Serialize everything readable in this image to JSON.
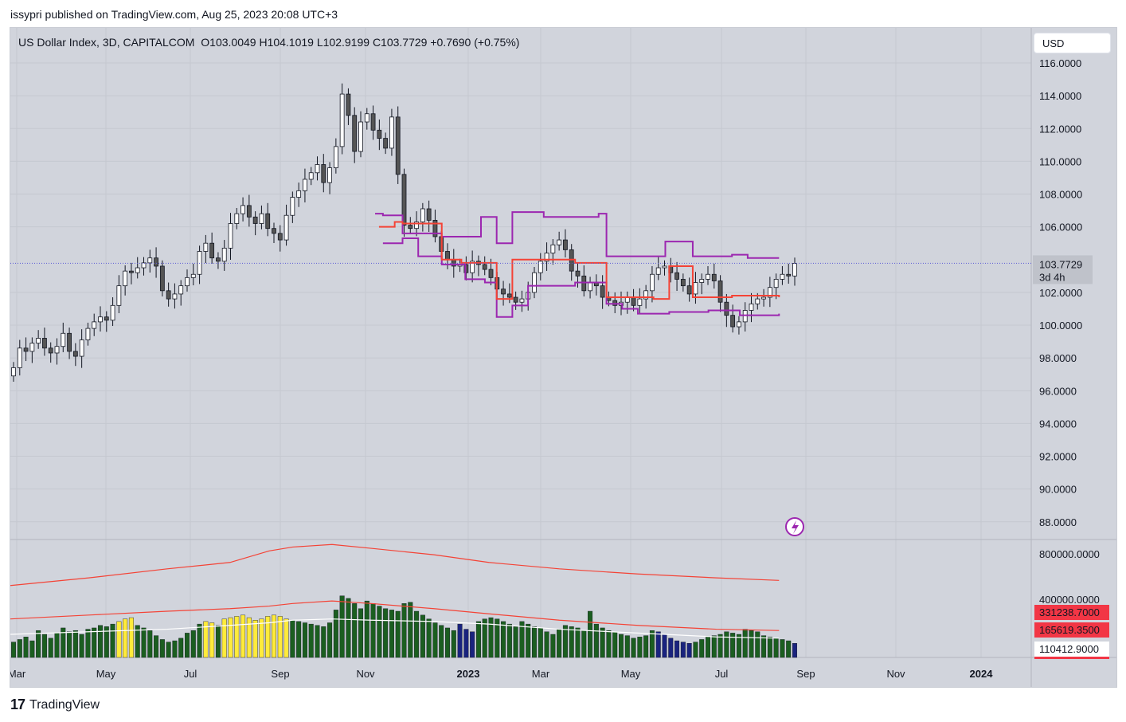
{
  "header": {
    "published_by": "issypri published on TradingView.com, Aug 25, 2023 20:08 UTC+3"
  },
  "legend": {
    "symbol": "US Dollar Index, 3D, CAPITALCOM",
    "open": "O103.0049",
    "high": "H104.1019",
    "low": "L102.9199",
    "close": "C103.7729",
    "change": "+0.7690 (+0.75%)"
  },
  "currency_button": "USD",
  "footer": {
    "brand": "TradingView",
    "logo_text": "17"
  },
  "colors": {
    "background": "#d1d4dc",
    "candle_up": "#ffffff",
    "candle_down": "#555555",
    "channel": "#9c27b0",
    "midline": "#f44336",
    "vol_green": "#1b5e20",
    "vol_yellow": "#ffeb3b",
    "vol_blue": "#1a237e",
    "vol_ma_red": "#f44336",
    "vol_ma_white": "#ffffff",
    "last_price": "#5b5bd6",
    "badge_red": "#f23645"
  },
  "price_axis": {
    "ticks": [
      "116.0000",
      "114.0000",
      "112.0000",
      "110.0000",
      "108.0000",
      "106.0000",
      "102.0000",
      "100.0000",
      "98.0000",
      "96.0000",
      "94.0000",
      "92.0000",
      "90.0000",
      "88.0000"
    ],
    "last_price": "103.7729",
    "countdown": "3d 4h"
  },
  "volume_axis": {
    "ticks": [
      "800000.0000",
      "400000.0000"
    ],
    "badges": [
      "331238.7000",
      "165619.3500",
      "110412.9000"
    ]
  },
  "time_axis": {
    "labels": [
      "Mar",
      "May",
      "Jul",
      "Sep",
      "Nov",
      "2023",
      "Mar",
      "May",
      "Jul",
      "Sep",
      "Nov",
      "2024"
    ]
  },
  "chart_data": {
    "type": "candlestick",
    "title": "US Dollar Index, 3D, CAPITALCOM",
    "ylim": [
      86.0,
      117.0
    ],
    "ohlc_closes": [
      97.4,
      98.6,
      98.4,
      98.9,
      99.2,
      98.6,
      98.3,
      98.7,
      99.5,
      98.4,
      98.1,
      99.1,
      99.8,
      100.2,
      100.5,
      100.3,
      101.2,
      102.4,
      103.3,
      103.2,
      103.5,
      103.8,
      104.1,
      103.6,
      102.1,
      101.6,
      101.9,
      102.4,
      102.9,
      103.1,
      104.5,
      105.0,
      104.1,
      103.9,
      104.7,
      106.2,
      106.8,
      107.3,
      106.6,
      106.2,
      106.8,
      105.9,
      105.6,
      105.2,
      106.7,
      107.8,
      108.2,
      108.9,
      109.3,
      109.8,
      108.7,
      109.6,
      110.9,
      114.1,
      112.8,
      110.6,
      112.4,
      112.9,
      111.9,
      111.4,
      110.8,
      112.7,
      109.2,
      106.1,
      105.9,
      106.3,
      107.1,
      106.4,
      105.4,
      104.5,
      104.0,
      103.6,
      103.7,
      103.2,
      103.9,
      103.7,
      103.4,
      102.9,
      102.2,
      101.9,
      101.7,
      101.4,
      101.6,
      102.0,
      103.2,
      103.9,
      104.4,
      104.9,
      105.2,
      104.6,
      103.3,
      103.0,
      102.1,
      102.6,
      102.4,
      101.7,
      101.5,
      101.2,
      101.4,
      101.7,
      101.2,
      101.6,
      102.1,
      103.1,
      103.5,
      103.6,
      103.2,
      102.8,
      102.4,
      101.9,
      102.6,
      102.8,
      103.1,
      102.7,
      101.4,
      100.6,
      99.9,
      100.2,
      100.9,
      101.3,
      101.6,
      101.7,
      102.3,
      102.8,
      103.1,
      103.0,
      103.77
    ],
    "channel_upper": [
      [
        0.465,
        106.8
      ],
      [
        0.475,
        106.7
      ],
      [
        0.5,
        105.6
      ],
      [
        0.55,
        105.4
      ],
      [
        0.6,
        106.6
      ],
      [
        0.62,
        105.0
      ],
      [
        0.64,
        106.9
      ],
      [
        0.68,
        106.6
      ],
      [
        0.75,
        106.8
      ],
      [
        0.76,
        104.2
      ],
      [
        0.82,
        104.2
      ],
      [
        0.835,
        105.1
      ],
      [
        0.85,
        105.1
      ],
      [
        0.87,
        104.2
      ],
      [
        0.92,
        104.3
      ],
      [
        0.94,
        104.1
      ],
      [
        0.98,
        104.1
      ]
    ],
    "channel_lower": [
      [
        0.475,
        105.0
      ],
      [
        0.5,
        105.3
      ],
      [
        0.52,
        104.2
      ],
      [
        0.55,
        103.7
      ],
      [
        0.58,
        102.8
      ],
      [
        0.605,
        102.6
      ],
      [
        0.62,
        100.5
      ],
      [
        0.64,
        101.2
      ],
      [
        0.66,
        102.4
      ],
      [
        0.72,
        102.6
      ],
      [
        0.76,
        101.3
      ],
      [
        0.78,
        101.0
      ],
      [
        0.8,
        100.7
      ],
      [
        0.84,
        100.8
      ],
      [
        0.87,
        100.8
      ],
      [
        0.89,
        100.9
      ],
      [
        0.93,
        100.6
      ],
      [
        0.98,
        100.7
      ]
    ],
    "midline": [
      [
        0.47,
        106.0
      ],
      [
        0.49,
        106.3
      ],
      [
        0.5,
        106.2
      ],
      [
        0.55,
        104.0
      ],
      [
        0.575,
        103.8
      ],
      [
        0.62,
        101.6
      ],
      [
        0.64,
        104.0
      ],
      [
        0.72,
        103.8
      ],
      [
        0.75,
        103.8
      ],
      [
        0.76,
        101.7
      ],
      [
        0.82,
        101.6
      ],
      [
        0.84,
        103.6
      ],
      [
        0.86,
        103.6
      ],
      [
        0.87,
        101.7
      ],
      [
        0.92,
        101.8
      ],
      [
        0.98,
        101.7
      ]
    ],
    "volume": {
      "ylim": [
        0,
        900000
      ],
      "bars": [
        120000,
        140000,
        160000,
        130000,
        210000,
        180000,
        150000,
        190000,
        230000,
        200000,
        210000,
        180000,
        220000,
        230000,
        250000,
        240000,
        260000,
        280000,
        300000,
        310000,
        250000,
        230000,
        210000,
        170000,
        140000,
        120000,
        130000,
        150000,
        190000,
        210000,
        260000,
        280000,
        270000,
        250000,
        300000,
        310000,
        320000,
        330000,
        310000,
        290000,
        300000,
        320000,
        330000,
        320000,
        300000,
        290000,
        280000,
        270000,
        260000,
        250000,
        240000,
        270000,
        370000,
        480000,
        460000,
        420000,
        380000,
        440000,
        420000,
        400000,
        380000,
        370000,
        360000,
        420000,
        430000,
        360000,
        330000,
        300000,
        270000,
        250000,
        230000,
        210000,
        260000,
        220000,
        200000,
        280000,
        300000,
        310000,
        300000,
        280000,
        260000,
        240000,
        280000,
        260000,
        240000,
        230000,
        200000,
        180000,
        220000,
        250000,
        240000,
        230000,
        210000,
        360000,
        260000,
        230000,
        210000,
        200000,
        180000,
        170000,
        150000,
        160000,
        170000,
        210000,
        200000,
        180000,
        150000,
        130000,
        120000,
        110000,
        120000,
        140000,
        160000,
        170000,
        180000,
        200000,
        190000,
        180000,
        220000,
        210000,
        200000,
        170000,
        160000,
        150000,
        140000,
        130000,
        110000
      ],
      "ma_red_slow": [
        [
          0.0,
          560000
        ],
        [
          0.1,
          620000
        ],
        [
          0.2,
          690000
        ],
        [
          0.28,
          740000
        ],
        [
          0.33,
          830000
        ],
        [
          0.36,
          860000
        ],
        [
          0.41,
          880000
        ],
        [
          0.46,
          850000
        ],
        [
          0.54,
          800000
        ],
        [
          0.61,
          740000
        ],
        [
          0.7,
          690000
        ],
        [
          0.8,
          650000
        ],
        [
          0.9,
          620000
        ],
        [
          0.98,
          600000
        ]
      ],
      "ma_red_fast": [
        [
          0.0,
          300000
        ],
        [
          0.1,
          330000
        ],
        [
          0.2,
          360000
        ],
        [
          0.28,
          380000
        ],
        [
          0.33,
          400000
        ],
        [
          0.36,
          420000
        ],
        [
          0.41,
          440000
        ],
        [
          0.46,
          420000
        ],
        [
          0.54,
          380000
        ],
        [
          0.61,
          340000
        ],
        [
          0.7,
          290000
        ],
        [
          0.8,
          250000
        ],
        [
          0.9,
          220000
        ],
        [
          0.98,
          210000
        ]
      ],
      "ma_white": [
        [
          0.0,
          180000
        ],
        [
          0.1,
          200000
        ],
        [
          0.2,
          220000
        ],
        [
          0.28,
          250000
        ],
        [
          0.33,
          270000
        ],
        [
          0.36,
          290000
        ],
        [
          0.41,
          300000
        ],
        [
          0.46,
          290000
        ],
        [
          0.54,
          280000
        ],
        [
          0.61,
          260000
        ],
        [
          0.7,
          220000
        ],
        [
          0.8,
          190000
        ],
        [
          0.9,
          160000
        ],
        [
          0.98,
          150000
        ]
      ]
    }
  }
}
